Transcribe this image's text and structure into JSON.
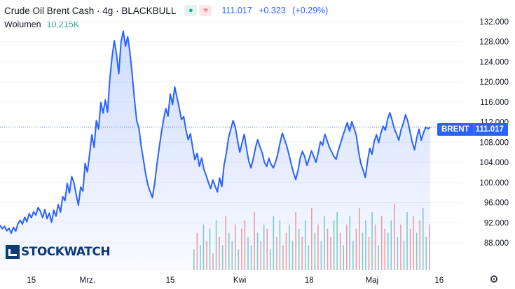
{
  "legend": {
    "title": "Crude Oil Brent Cash · 4g · BLACKBULL",
    "price": "111.017",
    "change": "+0.323",
    "change_pct": "(+0.29%)",
    "volume_label": "Wolumen",
    "volume_value": "10.215K"
  },
  "price_tag": {
    "symbol": "BRENT",
    "value": "111.017"
  },
  "logo_text": "STOCKWATCH",
  "colors": {
    "line": "#2962ff",
    "vol_up": "#26a69a",
    "vol_down": "#ef5350",
    "accent": "#2962ff"
  },
  "icons": {
    "settings": "gear-icon"
  },
  "chart_data": {
    "type": "area",
    "title": "Crude Oil Brent Cash · 4g · BLACKBULL",
    "ylim": [
      85.5,
      133.5
    ],
    "y_ticks": [
      "132.000",
      "128.000",
      "124.000",
      "120.000",
      "116.000",
      "112.000",
      "108.000",
      "104.000",
      "100.000",
      "96.000",
      "92.000",
      "88.000"
    ],
    "y_tick_values": [
      132,
      128,
      124,
      120,
      116,
      112,
      108,
      104,
      100,
      96,
      92,
      88
    ],
    "x_tick_labels": [
      "15",
      "Mrz.",
      "15",
      "Kwi",
      "18",
      "Maj",
      "16"
    ],
    "x_tick_index": [
      14,
      39,
      76,
      107,
      138,
      166,
      196
    ],
    "series": [
      {
        "values": [
          91.5,
          90.8,
          91.3,
          90.4,
          90.9,
          89.9,
          91.1,
          90.3,
          91.8,
          92.5,
          91.7,
          93.1,
          92.2,
          93.8,
          93.0,
          94.2,
          93.5,
          95.0,
          94.3,
          93.0,
          94.6,
          92.8,
          93.9,
          92.1,
          94.5,
          93.3,
          95.6,
          94.1,
          97.2,
          96.4,
          99.8,
          97.9,
          101.2,
          100.0,
          97.6,
          95.5,
          99.1,
          98.3,
          103.8,
          102.1,
          105.7,
          109.5,
          107.0,
          112.3,
          110.6,
          115.9,
          113.8,
          116.4,
          114.0,
          120.5,
          124.9,
          128.2,
          125.5,
          121.6,
          127.9,
          130.1,
          127.1,
          129.0,
          125.8,
          121.4,
          116.5,
          112.3,
          110.8,
          107.2,
          104.5,
          101.7,
          99.5,
          98.2,
          97.0,
          99.8,
          103.5,
          106.8,
          109.9,
          112.5,
          114.7,
          113.2,
          117.6,
          115.5,
          119.0,
          116.9,
          114.8,
          112.5,
          113.1,
          110.4,
          108.5,
          109.7,
          106.9,
          104.5,
          105.8,
          103.2,
          104.9,
          102.6,
          101.4,
          100.0,
          98.8,
          100.5,
          99.3,
          98.1,
          100.9,
          99.2,
          103.5,
          105.8,
          108.9,
          110.6,
          112.3,
          111.0,
          108.4,
          106.0,
          107.8,
          109.6,
          106.8,
          104.3,
          102.9,
          104.7,
          106.9,
          108.5,
          107.1,
          105.9,
          104.0,
          103.2,
          104.8,
          103.6,
          102.9,
          104.1,
          105.7,
          107.9,
          109.8,
          108.6,
          107.2,
          105.5,
          103.6,
          101.9,
          100.6,
          102.4,
          104.9,
          106.2,
          105.1,
          103.4,
          104.8,
          106.3,
          105.2,
          104.0,
          105.9,
          108.1,
          107.4,
          109.6,
          108.3,
          107.0,
          106.1,
          105.2,
          104.6,
          106.4,
          107.8,
          109.3,
          110.6,
          111.9,
          110.2,
          112.1,
          110.8,
          109.4,
          106.2,
          103.8,
          102.5,
          101.0,
          104.2,
          106.8,
          105.6,
          108.2,
          109.5,
          107.9,
          109.8,
          111.2,
          110.4,
          112.6,
          113.9,
          112.4,
          110.7,
          109.6,
          108.4,
          110.5,
          111.8,
          113.5,
          112.2,
          110.1,
          108.0,
          106.5,
          108.9,
          110.6,
          108.4,
          109.9,
          111.0,
          110.7,
          111.017
        ]
      }
    ],
    "volume": [
      5,
      9,
      6,
      11,
      7,
      10,
      4,
      12,
      8,
      6,
      13,
      9,
      7,
      11,
      5,
      10,
      12,
      8,
      6,
      14,
      9,
      7,
      11,
      10,
      5,
      13,
      8,
      12,
      6,
      9,
      11,
      7,
      14,
      10,
      8,
      12,
      6,
      15,
      9,
      11,
      7,
      13,
      10,
      8,
      12,
      14,
      9,
      6,
      11,
      13,
      7,
      10,
      15,
      9,
      12,
      8,
      14,
      11,
      6,
      13,
      10,
      9,
      12,
      16,
      8,
      11,
      7,
      14,
      10,
      13,
      9,
      12,
      15,
      8,
      11
    ],
    "volume_up": [
      true,
      false,
      true,
      true,
      false,
      true,
      false,
      true,
      false,
      true,
      false,
      true,
      true,
      false,
      true,
      false,
      false,
      true,
      true,
      false,
      true,
      false,
      true,
      false,
      true,
      true,
      false,
      true,
      false,
      false,
      true,
      true,
      false,
      true,
      false,
      true,
      true,
      false,
      true,
      false,
      true,
      true,
      false,
      false,
      true,
      true,
      false,
      true,
      false,
      true,
      true,
      false,
      false,
      true,
      true,
      false,
      true,
      false,
      true,
      false,
      false,
      true,
      true,
      false,
      true,
      false,
      true,
      true,
      false,
      false,
      true,
      false,
      true,
      true,
      false
    ]
  }
}
